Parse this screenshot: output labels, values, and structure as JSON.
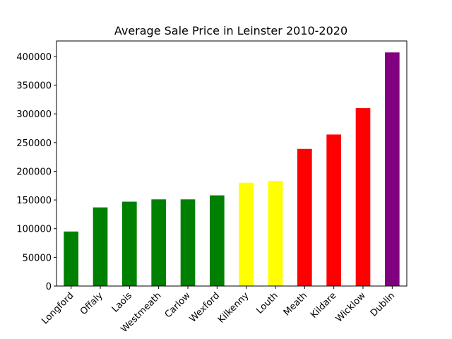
{
  "chart_data": {
    "type": "bar",
    "title": "Average Sale Price in Leinster 2010-2020",
    "xlabel": "",
    "ylabel": "",
    "categories": [
      "Longford",
      "Offaly",
      "Laois",
      "Westmeath",
      "Carlow",
      "Wexford",
      "Kilkenny",
      "Louth",
      "Meath",
      "Kildare",
      "Wicklow",
      "Dublin"
    ],
    "values": [
      95000,
      137000,
      147000,
      151000,
      151000,
      158000,
      180000,
      183000,
      239000,
      264000,
      310000,
      407000
    ],
    "colors": [
      "#008000",
      "#008000",
      "#008000",
      "#008000",
      "#008000",
      "#008000",
      "#ffff00",
      "#ffff00",
      "#ff0000",
      "#ff0000",
      "#ff0000",
      "#800080"
    ],
    "ylim": [
      0,
      427000
    ],
    "yticks": [
      0,
      50000,
      100000,
      150000,
      200000,
      250000,
      300000,
      350000,
      400000
    ],
    "grid": false,
    "legend": "none"
  }
}
